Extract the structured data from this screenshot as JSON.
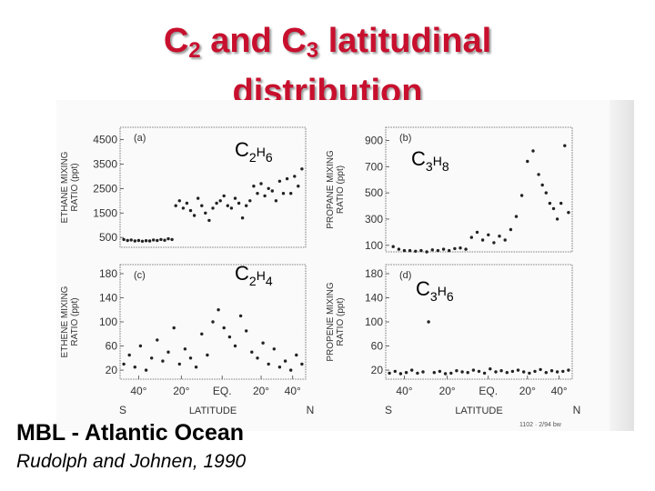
{
  "title": {
    "line1_a": "C",
    "line1_sub1": "2",
    "line1_b": " and C",
    "line1_sub2": "3",
    "line1_c": " latitudinal",
    "line2": "distribution"
  },
  "caption": {
    "region": "MBL - Atlantic Ocean",
    "citation": "Rudolph and Johnen, 1990",
    "stamp": "1102 · 2/94 bw"
  },
  "chart_data": [
    {
      "type": "scatter",
      "panel": "(a)",
      "species": "C2H6",
      "ylabel": "ETHANE MIXING RATIO (ppt)",
      "yticks": [
        500,
        1500,
        2500,
        3500,
        4500
      ],
      "ylim": [
        100,
        5000
      ],
      "x": [
        0.02,
        0.04,
        0.06,
        0.08,
        0.1,
        0.12,
        0.14,
        0.16,
        0.18,
        0.2,
        0.22,
        0.24,
        0.26,
        0.28,
        0.3,
        0.32,
        0.34,
        0.36,
        0.38,
        0.4,
        0.42,
        0.44,
        0.46,
        0.48,
        0.5,
        0.52,
        0.54,
        0.56,
        0.58,
        0.6,
        0.62,
        0.64,
        0.66,
        0.68,
        0.7,
        0.72,
        0.74,
        0.76,
        0.78,
        0.8,
        0.82,
        0.84,
        0.86,
        0.88,
        0.9,
        0.92,
        0.94,
        0.96,
        0.98
      ],
      "y": [
        420,
        380,
        400,
        360,
        380,
        350,
        370,
        360,
        400,
        380,
        420,
        390,
        450,
        420,
        1800,
        2000,
        1700,
        1900,
        1600,
        1400,
        2100,
        1800,
        1500,
        1200,
        1700,
        1900,
        2000,
        2200,
        1800,
        1700,
        2100,
        1900,
        1300,
        1800,
        2000,
        2600,
        2300,
        2700,
        2200,
        2500,
        2400,
        2000,
        2800,
        2300,
        2900,
        2300,
        3000,
        2600,
        3300
      ]
    },
    {
      "type": "scatter",
      "panel": "(b)",
      "species": "C3H8",
      "ylabel": "PROPANE MIXING RATIO (ppt)",
      "yticks": [
        100,
        300,
        500,
        700,
        900
      ],
      "ylim": [
        50,
        1000
      ],
      "x": [
        0.04,
        0.07,
        0.1,
        0.13,
        0.16,
        0.19,
        0.22,
        0.25,
        0.28,
        0.31,
        0.34,
        0.37,
        0.4,
        0.43,
        0.46,
        0.49,
        0.52,
        0.55,
        0.58,
        0.61,
        0.64,
        0.67,
        0.7,
        0.73,
        0.76,
        0.79,
        0.82,
        0.84,
        0.86,
        0.88,
        0.9,
        0.92,
        0.94,
        0.96,
        0.98
      ],
      "y": [
        90,
        70,
        60,
        60,
        55,
        60,
        50,
        65,
        60,
        70,
        60,
        75,
        80,
        70,
        160,
        200,
        140,
        180,
        120,
        170,
        140,
        220,
        320,
        480,
        740,
        820,
        640,
        560,
        500,
        420,
        380,
        300,
        420,
        860,
        350
      ]
    },
    {
      "type": "scatter",
      "panel": "(c)",
      "species": "C2H4",
      "ylabel": "ETHENE MIXING RATIO (ppt)",
      "yticks": [
        20,
        60,
        100,
        140,
        180
      ],
      "ylim": [
        5,
        195
      ],
      "xticks": [
        "40°",
        "20°",
        "EQ.",
        "20°",
        "40°"
      ],
      "xlabel_left": "S",
      "xlabel": "LATITUDE",
      "xlabel_right": "N",
      "x": [
        0.02,
        0.05,
        0.08,
        0.11,
        0.14,
        0.17,
        0.2,
        0.23,
        0.26,
        0.29,
        0.32,
        0.35,
        0.38,
        0.41,
        0.44,
        0.47,
        0.5,
        0.53,
        0.56,
        0.59,
        0.62,
        0.65,
        0.68,
        0.71,
        0.74,
        0.77,
        0.8,
        0.83,
        0.86,
        0.89,
        0.92,
        0.95,
        0.98
      ],
      "y": [
        30,
        45,
        25,
        60,
        20,
        40,
        70,
        35,
        50,
        90,
        30,
        55,
        40,
        25,
        80,
        45,
        100,
        120,
        90,
        75,
        60,
        110,
        85,
        50,
        40,
        65,
        30,
        55,
        25,
        35,
        20,
        45,
        30
      ]
    },
    {
      "type": "scatter",
      "panel": "(d)",
      "species": "C3H6",
      "ylabel": "PROPENE MIXING RATIO (ppt)",
      "yticks": [
        20,
        60,
        100,
        140,
        180
      ],
      "ylim": [
        5,
        195
      ],
      "xticks": [
        "40°",
        "20°",
        "EQ.",
        "20°",
        "40°"
      ],
      "xlabel_left": "S",
      "xlabel": "LATITUDE",
      "xlabel_right": "N",
      "x": [
        0.02,
        0.05,
        0.08,
        0.11,
        0.14,
        0.17,
        0.2,
        0.23,
        0.26,
        0.29,
        0.32,
        0.35,
        0.38,
        0.41,
        0.44,
        0.47,
        0.5,
        0.53,
        0.56,
        0.59,
        0.62,
        0.65,
        0.68,
        0.71,
        0.74,
        0.77,
        0.8,
        0.83,
        0.86,
        0.89,
        0.92,
        0.95,
        0.98
      ],
      "y": [
        15,
        18,
        14,
        16,
        20,
        15,
        17,
        100,
        16,
        18,
        14,
        15,
        19,
        17,
        16,
        20,
        18,
        15,
        22,
        17,
        19,
        16,
        18,
        20,
        17,
        15,
        18,
        21,
        16,
        19,
        17,
        18,
        20
      ]
    }
  ]
}
